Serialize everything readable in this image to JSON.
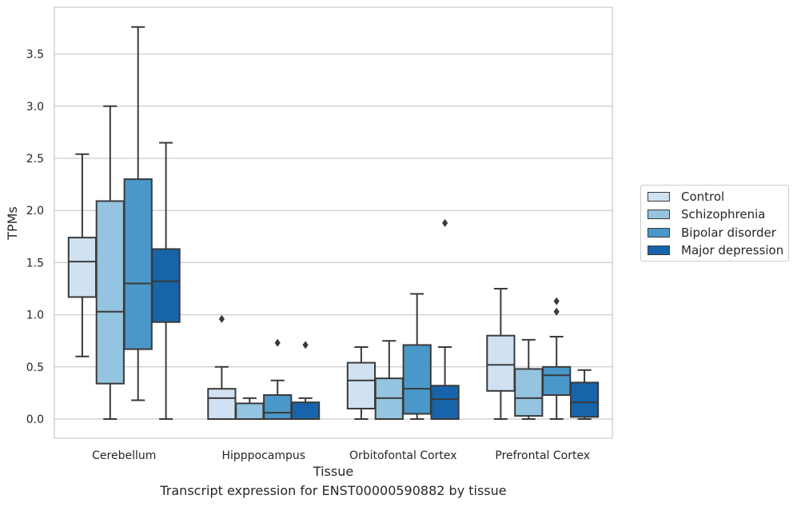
{
  "chart_data": {
    "type": "boxplot",
    "xlabel": "Tissue",
    "ylabel": "TPMs",
    "ylim": [
      -0.18,
      3.93
    ],
    "yticks": [
      0.0,
      0.5,
      1.0,
      1.5,
      2.0,
      2.5,
      3.0,
      3.5
    ],
    "ytick_labels": [
      "0.0",
      "0.5",
      "1.0",
      "1.5",
      "2.0",
      "2.5",
      "3.0",
      "3.5"
    ],
    "grid": "horizontal",
    "legend_position": "right, outside",
    "categories": [
      "Cerebellum",
      "Hipppocampus",
      "Orbitofontal Cortex",
      "Prefrontal Cortex"
    ],
    "series": [
      {
        "name": "Control",
        "color": "#d0e1f2",
        "boxes": [
          {
            "whislo": 0.6,
            "q1": 1.17,
            "med": 1.51,
            "q3": 1.74,
            "whishi": 2.54,
            "fliers": []
          },
          {
            "whislo": 0.0,
            "q1": 0.0,
            "med": 0.2,
            "q3": 0.29,
            "whishi": 0.5,
            "fliers": [
              0.96
            ]
          },
          {
            "whislo": 0.0,
            "q1": 0.1,
            "med": 0.37,
            "q3": 0.54,
            "whishi": 0.69,
            "fliers": []
          },
          {
            "whislo": 0.0,
            "q1": 0.27,
            "med": 0.52,
            "q3": 0.8,
            "whishi": 1.25,
            "fliers": []
          }
        ]
      },
      {
        "name": "Schizophrenia",
        "color": "#94c4df",
        "boxes": [
          {
            "whislo": 0.0,
            "q1": 0.34,
            "med": 1.03,
            "q3": 2.09,
            "whishi": 3.0,
            "fliers": []
          },
          {
            "whislo": 0.0,
            "q1": 0.0,
            "med": 0.0,
            "q3": 0.15,
            "whishi": 0.2,
            "fliers": []
          },
          {
            "whislo": 0.0,
            "q1": 0.0,
            "med": 0.2,
            "q3": 0.39,
            "whishi": 0.75,
            "fliers": []
          },
          {
            "whislo": 0.0,
            "q1": 0.03,
            "med": 0.2,
            "q3": 0.48,
            "whishi": 0.76,
            "fliers": []
          }
        ]
      },
      {
        "name": "Bipolar disorder",
        "color": "#4a98c9",
        "boxes": [
          {
            "whislo": 0.18,
            "q1": 0.67,
            "med": 1.3,
            "q3": 2.3,
            "whishi": 3.76,
            "fliers": []
          },
          {
            "whislo": 0.0,
            "q1": 0.0,
            "med": 0.06,
            "q3": 0.23,
            "whishi": 0.37,
            "fliers": [
              0.73
            ]
          },
          {
            "whislo": 0.0,
            "q1": 0.05,
            "med": 0.29,
            "q3": 0.71,
            "whishi": 1.2,
            "fliers": []
          },
          {
            "whislo": 0.0,
            "q1": 0.23,
            "med": 0.42,
            "q3": 0.5,
            "whishi": 0.79,
            "fliers": [
              1.03,
              1.13
            ]
          }
        ]
      },
      {
        "name": "Major depression",
        "color": "#1764ab",
        "boxes": [
          {
            "whislo": 0.0,
            "q1": 0.93,
            "med": 1.32,
            "q3": 1.63,
            "whishi": 2.65,
            "fliers": []
          },
          {
            "whislo": 0.0,
            "q1": 0.0,
            "med": 0.0,
            "q3": 0.16,
            "whishi": 0.2,
            "fliers": [
              0.71
            ]
          },
          {
            "whislo": 0.0,
            "q1": 0.0,
            "med": 0.19,
            "q3": 0.32,
            "whishi": 0.69,
            "fliers": [
              1.88
            ]
          },
          {
            "whislo": 0.0,
            "q1": 0.02,
            "med": 0.16,
            "q3": 0.35,
            "whishi": 0.47,
            "fliers": []
          }
        ]
      }
    ],
    "caption": "Transcript expression for ENST00000590882 by tissue"
  }
}
